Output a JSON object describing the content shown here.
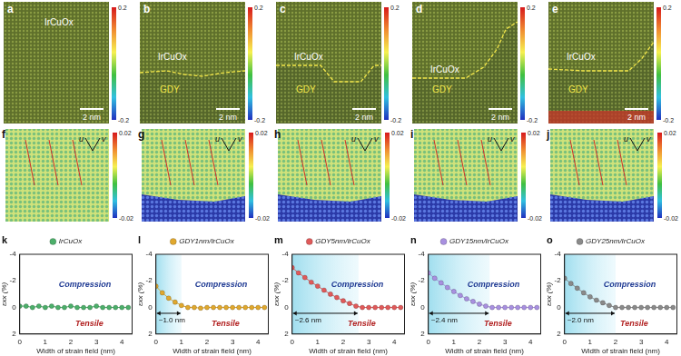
{
  "images": [
    {
      "panel": "a",
      "labels": [
        "IrCuOx"
      ],
      "scale_bar": "2 nm",
      "colorbar": {
        "range": [
          -0.2,
          0.2
        ],
        "ticks": [
          0.2,
          -0.2
        ]
      }
    },
    {
      "panel": "b",
      "labels": [
        "IrCuOx",
        "GDY"
      ],
      "scale_bar": "2 nm",
      "colorbar": {
        "range": [
          -0.2,
          0.2
        ],
        "ticks": [
          0.2,
          -0.2
        ]
      }
    },
    {
      "panel": "c",
      "labels": [
        "IrCuOx",
        "GDY"
      ],
      "scale_bar": "2 nm",
      "colorbar": {
        "range": [
          -0.2,
          0.2
        ],
        "ticks": [
          0.2,
          -0.2
        ]
      }
    },
    {
      "panel": "d",
      "labels": [
        "IrCuOx",
        "GDY"
      ],
      "scale_bar": "2 nm",
      "colorbar": {
        "range": [
          -0.2,
          0.2
        ],
        "ticks": [
          0.2,
          -0.2
        ]
      }
    },
    {
      "panel": "e",
      "labels": [
        "IrCuOx",
        "GDY"
      ],
      "scale_bar": "2 nm",
      "colorbar": {
        "range": [
          -0.2,
          0.2
        ],
        "ticks": [
          0.2,
          -0.2
        ]
      }
    }
  ],
  "strain_maps": [
    {
      "panel": "f",
      "labels": [
        "u",
        "v"
      ],
      "colorbar": {
        "range": [
          -0.02,
          0.02
        ],
        "ticks": [
          0.02,
          -0.02
        ]
      }
    },
    {
      "panel": "g",
      "labels": [
        "u",
        "v"
      ],
      "colorbar": {
        "range": [
          -0.02,
          0.02
        ],
        "ticks": [
          0.02,
          -0.02
        ]
      }
    },
    {
      "panel": "h",
      "labels": [
        "u",
        "v"
      ],
      "colorbar": {
        "range": [
          -0.02,
          0.02
        ],
        "ticks": [
          0.02,
          -0.02
        ]
      }
    },
    {
      "panel": "i",
      "labels": [
        "u",
        "v"
      ],
      "colorbar": {
        "range": [
          -0.02,
          0.02
        ],
        "ticks": [
          0.02,
          -0.02
        ]
      }
    },
    {
      "panel": "j",
      "labels": [
        "u",
        "v"
      ],
      "colorbar": {
        "range": [
          -0.02,
          0.02
        ],
        "ticks": [
          0.02,
          -0.02
        ]
      }
    }
  ],
  "chart_data": [
    {
      "panel": "k",
      "type": "line",
      "x_label": "Width of strain field (nm)",
      "y_label": "εxx (%)",
      "annotations": [
        "Compression",
        "Tensile"
      ],
      "x": [
        0,
        0.25,
        0.5,
        0.75,
        1,
        1.25,
        1.5,
        1.75,
        2,
        2.25,
        2.5,
        2.75,
        3,
        3.25,
        3.5,
        3.75,
        4,
        4.25
      ],
      "series": [
        {
          "name": "IrCuOx",
          "color": "#4caf6a",
          "marker": "circle",
          "values": [
            -0.1,
            -0.1,
            0,
            -0.1,
            0,
            -0.1,
            0,
            0,
            -0.1,
            0,
            0,
            0,
            -0.1,
            0,
            0,
            0,
            0,
            0
          ]
        }
      ],
      "xlim": [
        0,
        4.4
      ],
      "xticks": [
        0,
        1,
        2,
        3,
        4
      ],
      "ylim": [
        2,
        -4
      ],
      "yticks": [
        -4,
        -2,
        0,
        2
      ],
      "grid": false,
      "legend": "top"
    },
    {
      "panel": "l",
      "type": "line",
      "x_label": "Width of strain field (nm)",
      "y_label": "εxx (%)",
      "annotations": [
        "Compression",
        "Tensile"
      ],
      "strain_width": {
        "value": 1.0,
        "label": "~1.0 nm"
      },
      "x": [
        0,
        0.25,
        0.5,
        0.75,
        1,
        1.25,
        1.5,
        1.75,
        2,
        2.25,
        2.5,
        2.75,
        3,
        3.25,
        3.5,
        3.75,
        4,
        4.25
      ],
      "series": [
        {
          "name": "GDY1nm/IrCuOx",
          "color": "#e0a82e",
          "marker": "circle",
          "values": [
            -1.6,
            -1.1,
            -0.7,
            -0.4,
            -0.15,
            0,
            0,
            0.05,
            0,
            0,
            0,
            0,
            0,
            0,
            0,
            0,
            0,
            0
          ]
        }
      ],
      "xlim": [
        0,
        4.4
      ],
      "xticks": [
        0,
        1,
        2,
        3,
        4
      ],
      "ylim": [
        2,
        -4
      ],
      "yticks": [
        -4,
        -2,
        0,
        2
      ],
      "grid": false,
      "legend": "top"
    },
    {
      "panel": "m",
      "type": "line",
      "x_label": "Width of strain field (nm)",
      "y_label": "εxx (%)",
      "annotations": [
        "Compression",
        "Tensile"
      ],
      "strain_width": {
        "value": 2.6,
        "label": "~2.6 nm"
      },
      "x": [
        0,
        0.25,
        0.5,
        0.75,
        1,
        1.25,
        1.5,
        1.75,
        2,
        2.25,
        2.5,
        2.75,
        3,
        3.25,
        3.5,
        3.75,
        4,
        4.25
      ],
      "series": [
        {
          "name": "GDY5nm/IrCuOx",
          "color": "#e05a5a",
          "marker": "circle",
          "values": [
            -3.0,
            -2.6,
            -2.25,
            -1.9,
            -1.6,
            -1.3,
            -1.0,
            -0.75,
            -0.5,
            -0.3,
            -0.1,
            0,
            0,
            0,
            0,
            0,
            0,
            0
          ]
        }
      ],
      "xlim": [
        0,
        4.4
      ],
      "xticks": [
        0,
        1,
        2,
        3,
        4
      ],
      "ylim": [
        2,
        -4
      ],
      "yticks": [
        -4,
        -2,
        0,
        2
      ],
      "grid": false,
      "legend": "top"
    },
    {
      "panel": "n",
      "type": "line",
      "x_label": "Width of strain field (nm)",
      "y_label": "εxx (%)",
      "annotations": [
        "Compression",
        "Tensile"
      ],
      "strain_width": {
        "value": 2.4,
        "label": "~2.4 nm"
      },
      "x": [
        0,
        0.25,
        0.5,
        0.75,
        1,
        1.25,
        1.5,
        1.75,
        2,
        2.25,
        2.5,
        2.75,
        3,
        3.25,
        3.5,
        3.75,
        4,
        4.25
      ],
      "series": [
        {
          "name": "GDY15nm/IrCuOx",
          "color": "#a890e0",
          "marker": "circle",
          "values": [
            -2.6,
            -2.2,
            -1.85,
            -1.5,
            -1.2,
            -0.9,
            -0.65,
            -0.45,
            -0.25,
            -0.1,
            0,
            0,
            0,
            0,
            0,
            0,
            0,
            0
          ]
        }
      ],
      "xlim": [
        0,
        4.4
      ],
      "xticks": [
        0,
        1,
        2,
        3,
        4
      ],
      "ylim": [
        2,
        -4
      ],
      "yticks": [
        -4,
        -2,
        0,
        2
      ],
      "grid": false,
      "legend": "top"
    },
    {
      "panel": "o",
      "type": "line",
      "x_label": "Width of strain field (nm)",
      "y_label": "εxx (%)",
      "annotations": [
        "Compression",
        "Tensile"
      ],
      "strain_width": {
        "value": 2.0,
        "label": "~2.0 nm"
      },
      "x": [
        0,
        0.25,
        0.5,
        0.75,
        1,
        1.25,
        1.5,
        1.75,
        2,
        2.25,
        2.5,
        2.75,
        3,
        3.25,
        3.5,
        3.75,
        4,
        4.25
      ],
      "series": [
        {
          "name": "GDY25nm/IrCuOx",
          "color": "#8a8a8a",
          "marker": "circle",
          "values": [
            -2.2,
            -1.8,
            -1.45,
            -1.1,
            -0.8,
            -0.55,
            -0.35,
            -0.15,
            0,
            0,
            0,
            0,
            0,
            0,
            0,
            0,
            0,
            0
          ]
        }
      ],
      "xlim": [
        0,
        4.4
      ],
      "xticks": [
        0,
        1,
        2,
        3,
        4
      ],
      "ylim": [
        2,
        -4
      ],
      "yticks": [
        -4,
        -2,
        0,
        2
      ],
      "grid": false,
      "legend": "top"
    }
  ]
}
